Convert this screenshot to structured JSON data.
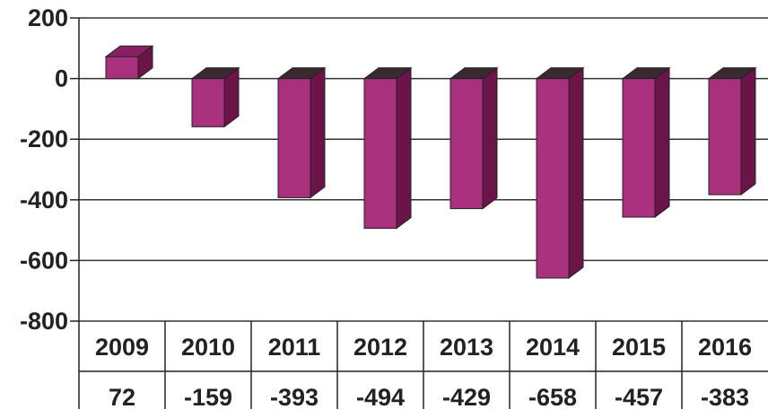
{
  "chart_data": {
    "type": "bar",
    "categories": [
      "2009",
      "2010",
      "2011",
      "2012",
      "2013",
      "2014",
      "2015",
      "2016"
    ],
    "values": [
      72,
      -159,
      -393,
      -494,
      -429,
      -658,
      -457,
      -383
    ],
    "ylim": [
      -800,
      200
    ],
    "yticks": [
      "200",
      "0",
      "-200",
      "-400",
      "-600",
      "-800"
    ],
    "table_values": [
      "72",
      "-159",
      "-393",
      "-494",
      "-429",
      "-658",
      "-457",
      "-383"
    ],
    "grid": true,
    "bar_style": "3d",
    "colors": {
      "bar_front": "#a8307c",
      "bar_side": "#6b1449",
      "bar_top": "#3a2a30",
      "grid": "#333333"
    }
  }
}
